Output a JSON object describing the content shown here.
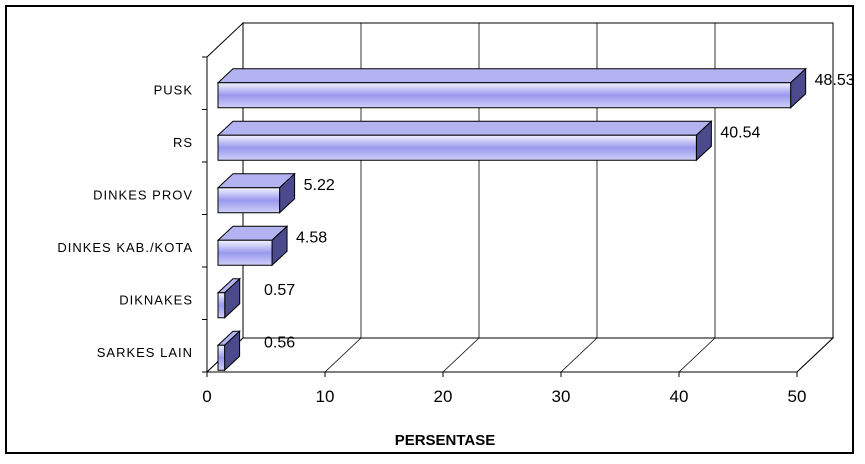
{
  "chart_data": {
    "type": "bar",
    "orientation": "horizontal",
    "three_d": true,
    "categories": [
      "PUSK",
      "RS",
      "DINKES PROV",
      "DINKES KAB./KOTA",
      "DIKNAKES",
      "SARKES LAIN"
    ],
    "values": [
      48.53,
      40.54,
      5.22,
      4.58,
      0.57,
      0.56
    ],
    "value_labels": [
      "48.53",
      "40.54",
      "5.22",
      "4.58",
      "0.57",
      "0.56"
    ],
    "xlabel": "PERSENTASE",
    "ylabel": "",
    "xlim": [
      0,
      50
    ],
    "ticks": [
      "0",
      "10",
      "20",
      "30",
      "40",
      "50"
    ],
    "grid": true,
    "legend": "none",
    "colors": {
      "bar_front_top": "#f4f4ff",
      "bar_front_mid": "#9999ee",
      "bar_front_bottom": "#cfcff8",
      "bar_top": "#b3b3f2",
      "bar_side": "#4a4a8c",
      "outline": "#000000"
    }
  }
}
